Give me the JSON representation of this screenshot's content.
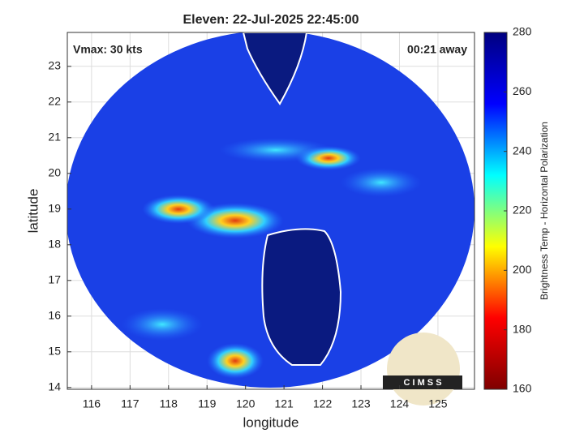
{
  "chart_data": {
    "type": "map",
    "title": "Eleven: 22-Jul-2025 22:45:00",
    "x_label": "longitude",
    "y_label": "latitude",
    "xlim": [
      115.37,
      125.95
    ],
    "ylim": [
      13.95,
      23.95
    ],
    "xticks": [
      116,
      117,
      118,
      119,
      120,
      121,
      122,
      123,
      124,
      125
    ],
    "yticks": [
      14,
      15,
      16,
      17,
      18,
      19,
      20,
      21,
      22,
      23
    ],
    "grid": true,
    "annotations": [
      "Vmax: 30 kts",
      "00:21 away"
    ],
    "logo": "C I M S S",
    "colorbar": {
      "label": "Brightness Temp - Horizontal Polarization",
      "lim": [
        160,
        280
      ],
      "ticks": [
        160,
        180,
        200,
        220,
        240,
        260,
        280
      ],
      "colormap": [
        "#7f0000",
        "#ff0000",
        "#ffff00",
        "#00ffff",
        "#0000ff",
        "#00007f"
      ]
    }
  }
}
